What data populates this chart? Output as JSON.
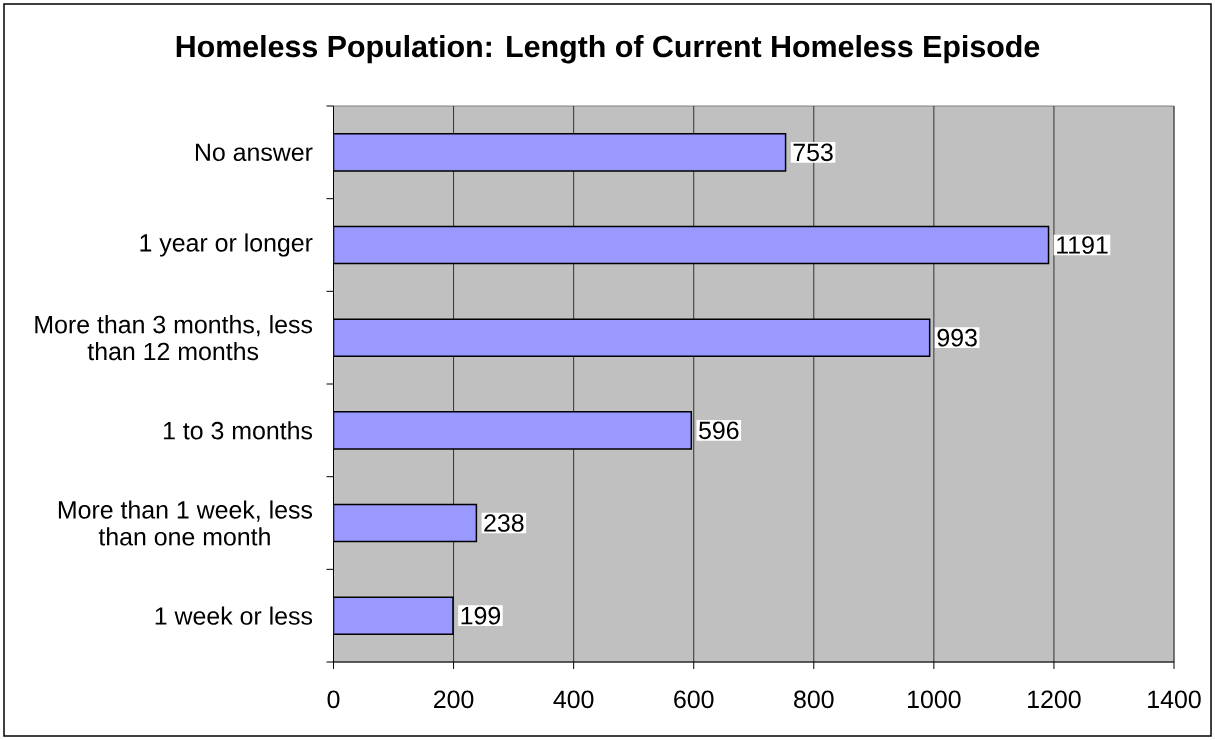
{
  "chart_data": {
    "type": "bar",
    "orientation": "horizontal",
    "title": "Homeless Population: Length of Current Homeless Episode",
    "categories": [
      "No answer",
      "1 year or longer",
      "More than 3 months, less than 12 months",
      "1 to 3 months",
      "More than 1 week, less than one month",
      "1 week or less"
    ],
    "values": [
      753,
      1191,
      993,
      596,
      238,
      199
    ],
    "color": "#9999ff",
    "xlim": [
      0,
      1400
    ],
    "xticks": [
      0,
      200,
      400,
      600,
      800,
      1000,
      1200,
      1400
    ],
    "grid": "x",
    "data_labels": true
  }
}
